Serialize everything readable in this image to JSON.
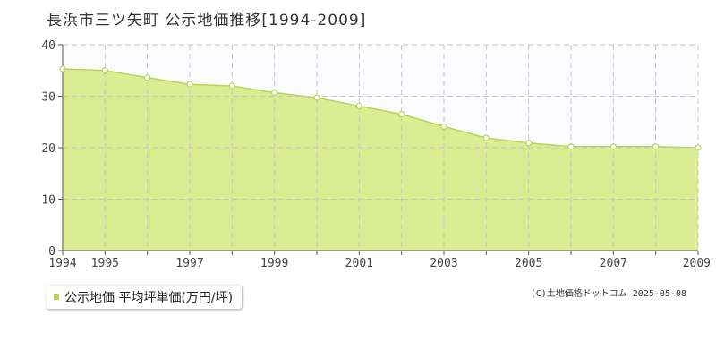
{
  "title": "長浜市三ツ矢町 公示地価推移[1994-2009]",
  "legend_label": "公示地価 平均坪単価(万円/坪)",
  "credit": "(C)土地価格ドットコム 2025-05-08",
  "colors": {
    "area_fill": "#dbec92",
    "line": "#b8d55a",
    "marker_fill": "#ffffff",
    "plot_bg": "#fbfafc",
    "grid": "#c8c8c8",
    "axis": "#555555",
    "legend_swatch": "#b5d651"
  },
  "chart_data": {
    "type": "area",
    "title": "長浜市三ツ矢町 公示地価推移[1994-2009]",
    "xlabel": "",
    "ylabel": "",
    "xlim": [
      1994,
      2009
    ],
    "ylim": [
      0,
      40
    ],
    "yticks": [
      "0",
      "10",
      "20",
      "30",
      "40"
    ],
    "xticks": [
      "1994",
      "1995",
      "1997",
      "1999",
      "2001",
      "2003",
      "2005",
      "2007",
      "2009"
    ],
    "grid": true,
    "legend_position": "bottom-left",
    "series": [
      {
        "name": "公示地価 平均坪単価(万円/坪)",
        "x": [
          1994,
          1995,
          1996,
          1997,
          1998,
          1999,
          2000,
          2001,
          2002,
          2003,
          2004,
          2005,
          2006,
          2007,
          2008,
          2009
        ],
        "values": [
          35.3,
          35.0,
          33.6,
          32.3,
          32.0,
          30.7,
          29.7,
          28.1,
          26.5,
          24.1,
          21.9,
          20.9,
          20.2,
          20.2,
          20.2,
          20.0
        ]
      }
    ]
  }
}
